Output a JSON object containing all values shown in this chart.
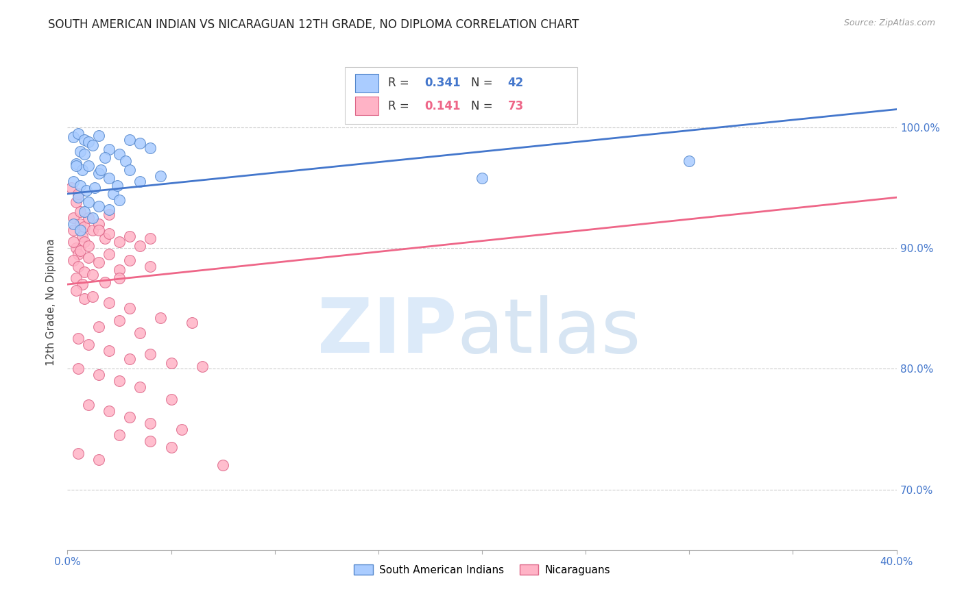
{
  "title": "SOUTH AMERICAN INDIAN VS NICARAGUAN 12TH GRADE, NO DIPLOMA CORRELATION CHART",
  "source": "Source: ZipAtlas.com",
  "ylabel": "12th Grade, No Diploma",
  "legend_blue_label": "South American Indians",
  "legend_pink_label": "Nicaraguans",
  "legend_blue_R": "0.341",
  "legend_blue_N": "42",
  "legend_pink_R": "0.141",
  "legend_pink_N": "73",
  "blue_scatter": [
    [
      0.3,
      99.2
    ],
    [
      0.5,
      99.5
    ],
    [
      0.8,
      99.0
    ],
    [
      1.0,
      98.8
    ],
    [
      1.5,
      99.3
    ],
    [
      0.6,
      98.0
    ],
    [
      1.2,
      98.5
    ],
    [
      2.0,
      98.2
    ],
    [
      2.5,
      97.8
    ],
    [
      3.0,
      99.0
    ],
    [
      3.5,
      98.7
    ],
    [
      4.0,
      98.3
    ],
    [
      1.8,
      97.5
    ],
    [
      2.8,
      97.2
    ],
    [
      0.4,
      97.0
    ],
    [
      0.7,
      96.5
    ],
    [
      1.0,
      96.8
    ],
    [
      1.5,
      96.2
    ],
    [
      2.0,
      95.8
    ],
    [
      3.0,
      96.5
    ],
    [
      0.3,
      95.5
    ],
    [
      0.6,
      95.2
    ],
    [
      0.9,
      94.8
    ],
    [
      1.3,
      95.0
    ],
    [
      2.2,
      94.5
    ],
    [
      0.5,
      94.2
    ],
    [
      1.0,
      93.8
    ],
    [
      1.5,
      93.5
    ],
    [
      2.5,
      94.0
    ],
    [
      0.8,
      93.0
    ],
    [
      1.2,
      92.5
    ],
    [
      2.0,
      93.2
    ],
    [
      3.5,
      95.5
    ],
    [
      4.5,
      96.0
    ],
    [
      0.4,
      96.8
    ],
    [
      0.8,
      97.8
    ],
    [
      1.6,
      96.5
    ],
    [
      2.4,
      95.2
    ],
    [
      0.3,
      92.0
    ],
    [
      0.6,
      91.5
    ],
    [
      20.0,
      95.8
    ],
    [
      30.0,
      97.2
    ]
  ],
  "pink_scatter": [
    [
      0.2,
      95.0
    ],
    [
      0.3,
      92.5
    ],
    [
      0.4,
      93.8
    ],
    [
      0.5,
      94.5
    ],
    [
      0.3,
      91.5
    ],
    [
      0.6,
      92.0
    ],
    [
      0.7,
      91.0
    ],
    [
      0.8,
      90.5
    ],
    [
      0.4,
      90.0
    ],
    [
      0.5,
      89.5
    ],
    [
      0.6,
      93.0
    ],
    [
      0.8,
      91.8
    ],
    [
      1.0,
      92.5
    ],
    [
      1.2,
      91.5
    ],
    [
      1.5,
      92.0
    ],
    [
      1.8,
      90.8
    ],
    [
      2.0,
      91.2
    ],
    [
      2.5,
      90.5
    ],
    [
      3.0,
      91.0
    ],
    [
      3.5,
      90.2
    ],
    [
      4.0,
      90.8
    ],
    [
      0.3,
      89.0
    ],
    [
      0.5,
      88.5
    ],
    [
      0.8,
      88.0
    ],
    [
      1.0,
      89.2
    ],
    [
      1.5,
      88.8
    ],
    [
      2.0,
      89.5
    ],
    [
      2.5,
      88.2
    ],
    [
      3.0,
      89.0
    ],
    [
      4.0,
      88.5
    ],
    [
      0.4,
      87.5
    ],
    [
      0.7,
      87.0
    ],
    [
      1.2,
      87.8
    ],
    [
      1.8,
      87.2
    ],
    [
      2.5,
      87.5
    ],
    [
      0.3,
      90.5
    ],
    [
      0.6,
      89.8
    ],
    [
      1.0,
      90.2
    ],
    [
      1.5,
      91.5
    ],
    [
      2.0,
      92.8
    ],
    [
      0.4,
      86.5
    ],
    [
      0.8,
      85.8
    ],
    [
      1.2,
      86.0
    ],
    [
      2.0,
      85.5
    ],
    [
      3.0,
      85.0
    ],
    [
      1.5,
      83.5
    ],
    [
      2.5,
      84.0
    ],
    [
      3.5,
      83.0
    ],
    [
      4.5,
      84.2
    ],
    [
      6.0,
      83.8
    ],
    [
      0.5,
      82.5
    ],
    [
      1.0,
      82.0
    ],
    [
      2.0,
      81.5
    ],
    [
      3.0,
      80.8
    ],
    [
      4.0,
      81.2
    ],
    [
      5.0,
      80.5
    ],
    [
      6.5,
      80.2
    ],
    [
      0.5,
      80.0
    ],
    [
      1.5,
      79.5
    ],
    [
      2.5,
      79.0
    ],
    [
      3.5,
      78.5
    ],
    [
      5.0,
      77.5
    ],
    [
      1.0,
      77.0
    ],
    [
      2.0,
      76.5
    ],
    [
      3.0,
      76.0
    ],
    [
      4.0,
      75.5
    ],
    [
      5.5,
      75.0
    ],
    [
      2.5,
      74.5
    ],
    [
      4.0,
      74.0
    ],
    [
      5.0,
      73.5
    ],
    [
      0.5,
      73.0
    ],
    [
      1.5,
      72.5
    ],
    [
      7.5,
      72.0
    ]
  ],
  "blue_line_x": [
    0.0,
    40.0
  ],
  "blue_line_y": [
    94.5,
    101.5
  ],
  "pink_line_x": [
    0.0,
    40.0
  ],
  "pink_line_y": [
    87.0,
    94.2
  ],
  "xlim": [
    0.0,
    40.0
  ],
  "ylim": [
    65.0,
    106.0
  ],
  "ytick_vals": [
    70.0,
    80.0,
    90.0,
    100.0
  ],
  "ytick_labels": [
    "70.0%",
    "80.0%",
    "90.0%",
    "100.0%"
  ],
  "blue_color": "#AACCFF",
  "pink_color": "#FFB3C6",
  "blue_edge_color": "#5588CC",
  "pink_edge_color": "#DD6688",
  "blue_line_color": "#4477CC",
  "pink_line_color": "#EE6688",
  "axis_tick_color": "#4477CC",
  "title_fontsize": 12,
  "background_color": "#FFFFFF",
  "grid_color": "#CCCCCC"
}
